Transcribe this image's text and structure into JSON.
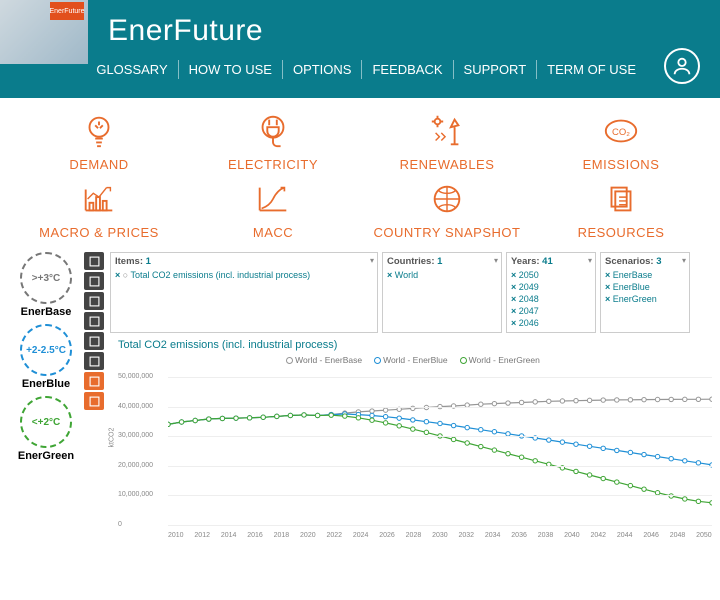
{
  "brand": "EnerFuture",
  "logo_badge": "EnerFuture",
  "top_nav": [
    "GLOSSARY",
    "HOW TO USE",
    "OPTIONS",
    "FEEDBACK",
    "SUPPORT",
    "TERM OF USE"
  ],
  "categories_row1": [
    {
      "label": "DEMAND",
      "icon": "bulb"
    },
    {
      "label": "ELECTRICITY",
      "icon": "plug"
    },
    {
      "label": "RENEWABLES",
      "icon": "windmill"
    },
    {
      "label": "EMISSIONS",
      "icon": "co2"
    }
  ],
  "categories_row2": [
    {
      "label": "MACRO & PRICES",
      "icon": "chart"
    },
    {
      "label": "MACC",
      "icon": "curve"
    },
    {
      "label": "COUNTRY SNAPSHOT",
      "icon": "globe"
    },
    {
      "label": "RESOURCES",
      "icon": "docs"
    }
  ],
  "scenarios": [
    {
      "label": "EnerBase",
      "text": ">+3°C",
      "color": "#777777"
    },
    {
      "label": "EnerBlue",
      "text": "+2-2.5°C",
      "color": "#1f8fd6"
    },
    {
      "label": "EnerGreen",
      "text": "<+2°C",
      "color": "#3fa535"
    }
  ],
  "tool_buttons": [
    "list",
    "folder",
    "download",
    "gear",
    "grid",
    "info",
    "table",
    "bars"
  ],
  "filters": {
    "items": {
      "title": "Items:",
      "count": 1,
      "entries": [
        "Total CO2 emissions (incl. industrial process)"
      ],
      "extra_circle": true
    },
    "countries": {
      "title": "Countries:",
      "count": 1,
      "entries": [
        "World"
      ]
    },
    "years": {
      "title": "Years:",
      "count": 41,
      "entries": [
        "2050",
        "2049",
        "2048",
        "2047",
        "2046"
      ]
    },
    "scenarios": {
      "title": "Scenarios:",
      "count": 3,
      "entries": [
        "EnerBase",
        "EnerBlue",
        "EnerGreen"
      ]
    }
  },
  "chart": {
    "title": "Total CO2 emissions (incl. industrial process)",
    "legend": [
      {
        "label": "World - EnerBase",
        "color": "#969696"
      },
      {
        "label": "World - EnerBlue",
        "color": "#1f8fd6"
      },
      {
        "label": "World - EnerGreen",
        "color": "#3fa535"
      }
    ],
    "ylabel": "ktCO2",
    "ylim": [
      0,
      50000000
    ],
    "yticks": [
      0,
      10000000,
      20000000,
      30000000,
      40000000,
      50000000
    ],
    "xlim": [
      2010,
      2050
    ],
    "xticks": [
      2010,
      2012,
      2014,
      2016,
      2018,
      2020,
      2022,
      2024,
      2026,
      2028,
      2030,
      2032,
      2034,
      2036,
      2038,
      2040,
      2042,
      2044,
      2046,
      2048,
      2050
    ],
    "background_color": "#ffffff",
    "grid_color": "#eeeeee",
    "marker": "circle",
    "marker_size": 2.2,
    "line_width": 1.2,
    "series": [
      {
        "name": "EnerBase",
        "color": "#969696",
        "hollow": true,
        "x": [
          2010,
          2011,
          2012,
          2013,
          2014,
          2015,
          2016,
          2017,
          2018,
          2019,
          2020,
          2021,
          2022,
          2023,
          2024,
          2025,
          2026,
          2027,
          2028,
          2029,
          2030,
          2031,
          2032,
          2033,
          2034,
          2035,
          2036,
          2037,
          2038,
          2039,
          2040,
          2041,
          2042,
          2043,
          2044,
          2045,
          2046,
          2047,
          2048,
          2049,
          2050
        ],
        "y": [
          34000000,
          34800000,
          35300000,
          35800000,
          36000000,
          36100000,
          36200000,
          36400000,
          36700000,
          37000000,
          37200000,
          37000000,
          37300000,
          37800000,
          38200000,
          38500000,
          38800000,
          39100000,
          39400000,
          39700000,
          40000000,
          40200000,
          40500000,
          40800000,
          41000000,
          41200000,
          41400000,
          41600000,
          41800000,
          41900000,
          42000000,
          42100000,
          42200000,
          42250000,
          42300000,
          42350000,
          42400000,
          42420000,
          42450000,
          42470000,
          42500000
        ]
      },
      {
        "name": "EnerBlue",
        "color": "#1f8fd6",
        "hollow": true,
        "x": [
          2010,
          2011,
          2012,
          2013,
          2014,
          2015,
          2016,
          2017,
          2018,
          2019,
          2020,
          2021,
          2022,
          2023,
          2024,
          2025,
          2026,
          2027,
          2028,
          2029,
          2030,
          2031,
          2032,
          2033,
          2034,
          2035,
          2036,
          2037,
          2038,
          2039,
          2040,
          2041,
          2042,
          2043,
          2044,
          2045,
          2046,
          2047,
          2048,
          2049,
          2050
        ],
        "y": [
          34000000,
          34800000,
          35300000,
          35800000,
          36000000,
          36100000,
          36200000,
          36400000,
          36700000,
          37000000,
          37200000,
          37000000,
          37300000,
          37500000,
          37300000,
          37000000,
          36600000,
          36100000,
          35500000,
          34900000,
          34300000,
          33600000,
          32900000,
          32200000,
          31500000,
          30800000,
          30100000,
          29400000,
          28700000,
          28000000,
          27300000,
          26600000,
          25900000,
          25200000,
          24500000,
          23800000,
          23100000,
          22400000,
          21700000,
          21000000,
          20300000
        ]
      },
      {
        "name": "EnerGreen",
        "color": "#3fa535",
        "hollow": true,
        "x": [
          2010,
          2011,
          2012,
          2013,
          2014,
          2015,
          2016,
          2017,
          2018,
          2019,
          2020,
          2021,
          2022,
          2023,
          2024,
          2025,
          2026,
          2027,
          2028,
          2029,
          2030,
          2031,
          2032,
          2033,
          2034,
          2035,
          2036,
          2037,
          2038,
          2039,
          2040,
          2041,
          2042,
          2043,
          2044,
          2045,
          2046,
          2047,
          2048,
          2049,
          2050
        ],
        "y": [
          34000000,
          34800000,
          35300000,
          35800000,
          36000000,
          36100000,
          36200000,
          36400000,
          36700000,
          37000000,
          37200000,
          37000000,
          37100000,
          36800000,
          36200000,
          35400000,
          34500000,
          33500000,
          32400000,
          31300000,
          30100000,
          28900000,
          27700000,
          26500000,
          25300000,
          24100000,
          22900000,
          21700000,
          20500000,
          19300000,
          18100000,
          16900000,
          15700000,
          14500000,
          13300000,
          12100000,
          10900000,
          9800000,
          8800000,
          8000000,
          7500000
        ]
      }
    ]
  },
  "colors": {
    "header_bg": "#0a7c8c",
    "accent": "#e86c2d"
  }
}
